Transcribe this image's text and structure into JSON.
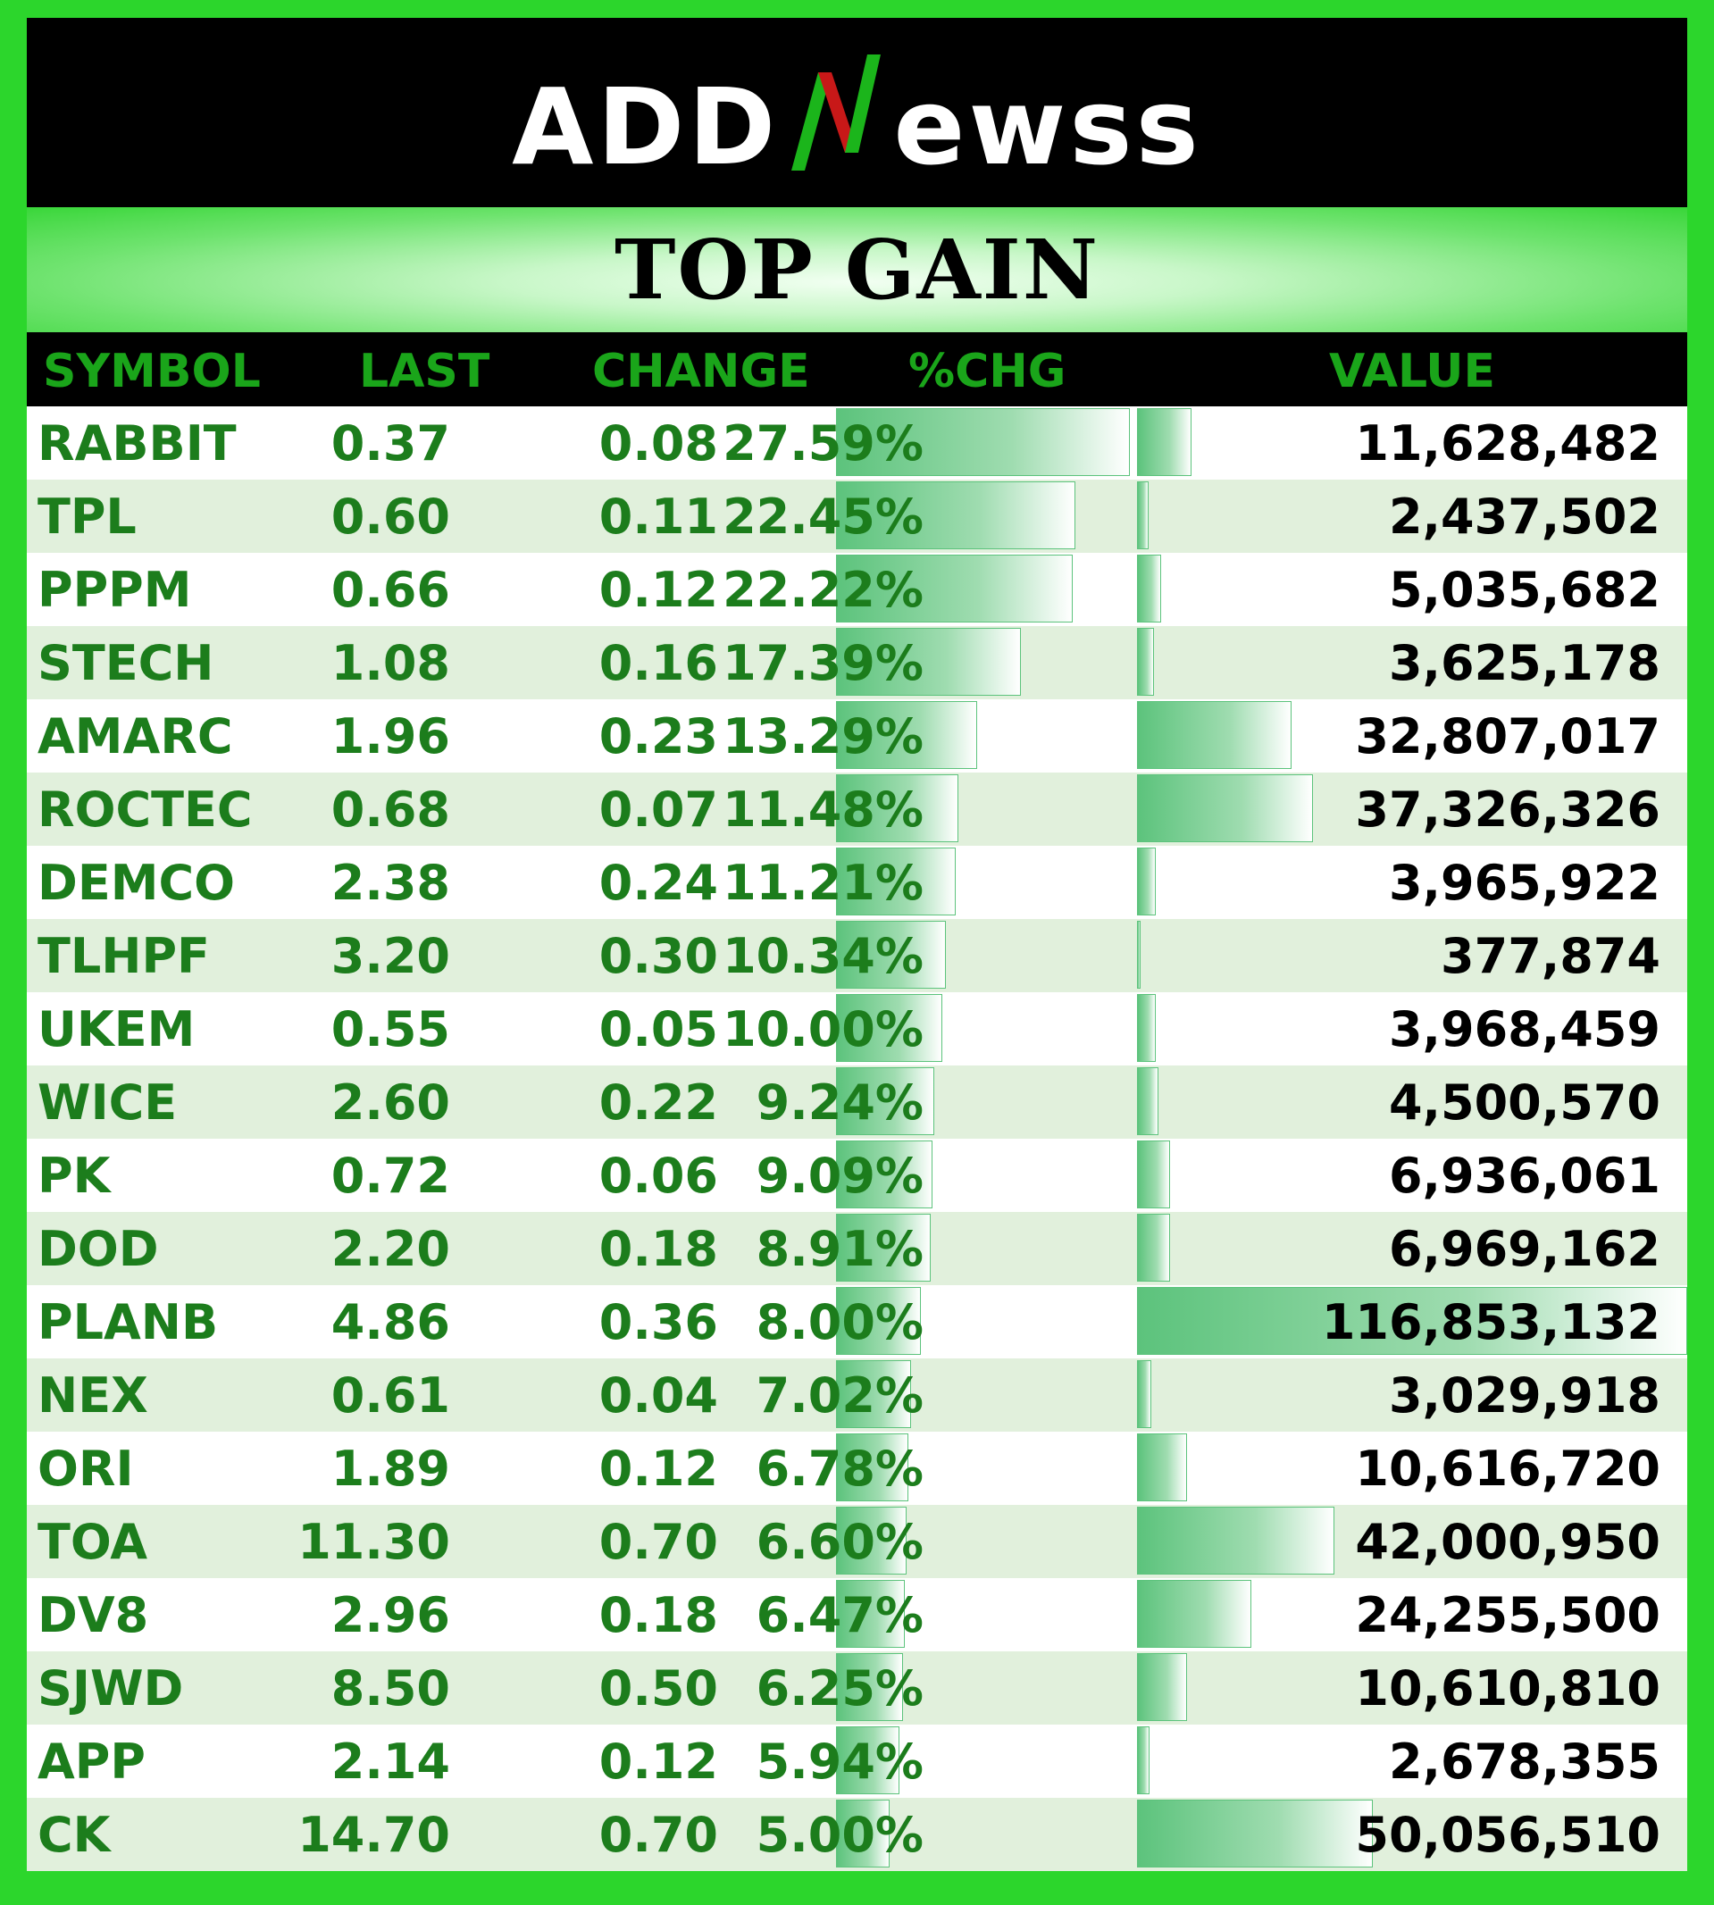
{
  "brand": {
    "name_part1": "ADD",
    "name_part2": "ewss",
    "accent_colors": [
      "#ffffff",
      "#1bb51b",
      "#c81818"
    ]
  },
  "title": "TOP GAIN",
  "table": {
    "headers": [
      "SYMBOL",
      "LAST",
      "CHANGE",
      "%CHG",
      "VALUE"
    ],
    "rows": [
      {
        "symbol": "RABBIT",
        "last": "0.37",
        "change": "0.08",
        "pct": "27.59%",
        "value": "11,628,482"
      },
      {
        "symbol": "TPL",
        "last": "0.60",
        "change": "0.11",
        "pct": "22.45%",
        "value": "2,437,502"
      },
      {
        "symbol": "PPPM",
        "last": "0.66",
        "change": "0.12",
        "pct": "22.22%",
        "value": "5,035,682"
      },
      {
        "symbol": "STECH",
        "last": "1.08",
        "change": "0.16",
        "pct": "17.39%",
        "value": "3,625,178"
      },
      {
        "symbol": "AMARC",
        "last": "1.96",
        "change": "0.23",
        "pct": "13.29%",
        "value": "32,807,017"
      },
      {
        "symbol": "ROCTEC",
        "last": "0.68",
        "change": "0.07",
        "pct": "11.48%",
        "value": "37,326,326"
      },
      {
        "symbol": "DEMCO",
        "last": "2.38",
        "change": "0.24",
        "pct": "11.21%",
        "value": "3,965,922"
      },
      {
        "symbol": "TLHPF",
        "last": "3.20",
        "change": "0.30",
        "pct": "10.34%",
        "value": "377,874"
      },
      {
        "symbol": "UKEM",
        "last": "0.55",
        "change": "0.05",
        "pct": "10.00%",
        "value": "3,968,459"
      },
      {
        "symbol": "WICE",
        "last": "2.60",
        "change": "0.22",
        "pct": "9.24%",
        "value": "4,500,570"
      },
      {
        "symbol": "PK",
        "last": "0.72",
        "change": "0.06",
        "pct": "9.09%",
        "value": "6,936,061"
      },
      {
        "symbol": "DOD",
        "last": "2.20",
        "change": "0.18",
        "pct": "8.91%",
        "value": "6,969,162"
      },
      {
        "symbol": "PLANB",
        "last": "4.86",
        "change": "0.36",
        "pct": "8.00%",
        "value": "116,853,132"
      },
      {
        "symbol": "NEX",
        "last": "0.61",
        "change": "0.04",
        "pct": "7.02%",
        "value": "3,029,918"
      },
      {
        "symbol": "ORI",
        "last": "1.89",
        "change": "0.12",
        "pct": "6.78%",
        "value": "10,616,720"
      },
      {
        "symbol": "TOA",
        "last": "11.30",
        "change": "0.70",
        "pct": "6.60%",
        "value": "42,000,950"
      },
      {
        "symbol": "DV8",
        "last": "2.96",
        "change": "0.18",
        "pct": "6.47%",
        "value": "24,255,500"
      },
      {
        "symbol": "SJWD",
        "last": "8.50",
        "change": "0.50",
        "pct": "6.25%",
        "value": "10,610,810"
      },
      {
        "symbol": "APP",
        "last": "2.14",
        "change": "0.12",
        "pct": "5.94%",
        "value": "2,678,355"
      },
      {
        "symbol": "CK",
        "last": "14.70",
        "change": "0.70",
        "pct": "5.00%",
        "value": "50,056,510"
      }
    ]
  }
}
